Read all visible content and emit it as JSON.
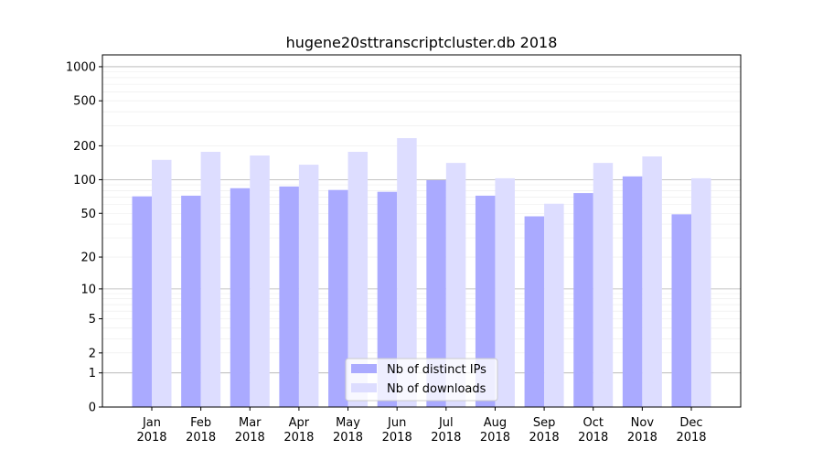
{
  "chart_data": {
    "type": "bar",
    "title": "hugene20sttranscriptcluster.db 2018",
    "xlabel": "",
    "ylabel": "",
    "yscale": "symlog",
    "ylim": [
      0,
      1500
    ],
    "yticks": [
      0,
      1,
      2,
      5,
      10,
      20,
      50,
      100,
      200,
      500,
      1000
    ],
    "grid": true,
    "legend_position": "lower center",
    "categories": [
      "Jan\n2018",
      "Feb\n2018",
      "Mar\n2018",
      "Apr\n2018",
      "May\n2018",
      "Jun\n2018",
      "Jul\n2018",
      "Aug\n2018",
      "Sep\n2018",
      "Oct\n2018",
      "Nov\n2018",
      "Dec\n2018"
    ],
    "series": [
      {
        "name": "Nb of distinct IPs",
        "color": "#aaaaff",
        "values": [
          71,
          72,
          84,
          87,
          81,
          78,
          99,
          72,
          47,
          76,
          107,
          49
        ]
      },
      {
        "name": "Nb of downloads",
        "color": "#ddddff",
        "values": [
          150,
          177,
          164,
          136,
          177,
          234,
          141,
          103,
          61,
          141,
          161,
          103
        ]
      }
    ]
  }
}
